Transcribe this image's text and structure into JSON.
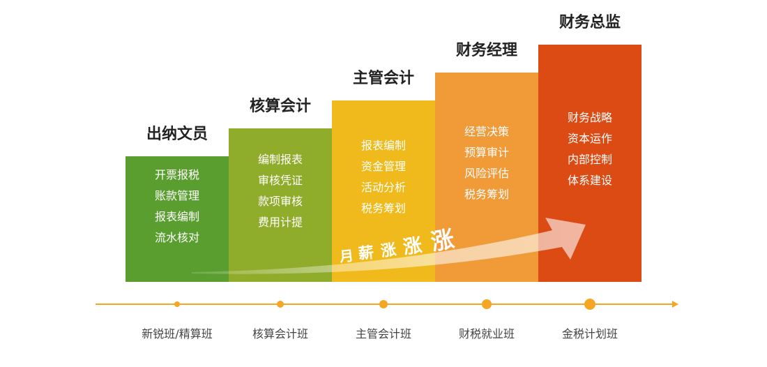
{
  "stages": [
    {
      "title": "出纳文员",
      "color": "#5a9e2f",
      "items": [
        "开票报税",
        "账款管理",
        "报表编制",
        "流水核对"
      ],
      "course": "新锐班/精算班"
    },
    {
      "title": "核算会计",
      "color": "#8fac2a",
      "items": [
        "编制报表",
        "审核凭证",
        "款项审核",
        "费用计提"
      ],
      "course": "核算会计班"
    },
    {
      "title": "主管会计",
      "color": "#f0ba1c",
      "items": [
        "报表编制",
        "资金管理",
        "活动分析",
        "税务筹划"
      ],
      "course": "主管会计班"
    },
    {
      "title": "财务经理",
      "color": "#f09a38",
      "items": [
        "经营决策",
        "预算审计",
        "风险评估",
        "税务筹划"
      ],
      "course": "财税就业班"
    },
    {
      "title": "财务总监",
      "color": "#dc4b14",
      "items": [
        "财务战略",
        "资本运作",
        "内部控制",
        "体系建设"
      ],
      "course": "金税计划班"
    }
  ],
  "salary": {
    "chars": [
      "月",
      "薪",
      "涨",
      "涨",
      "涨"
    ]
  },
  "axis_color": "#f5a623"
}
